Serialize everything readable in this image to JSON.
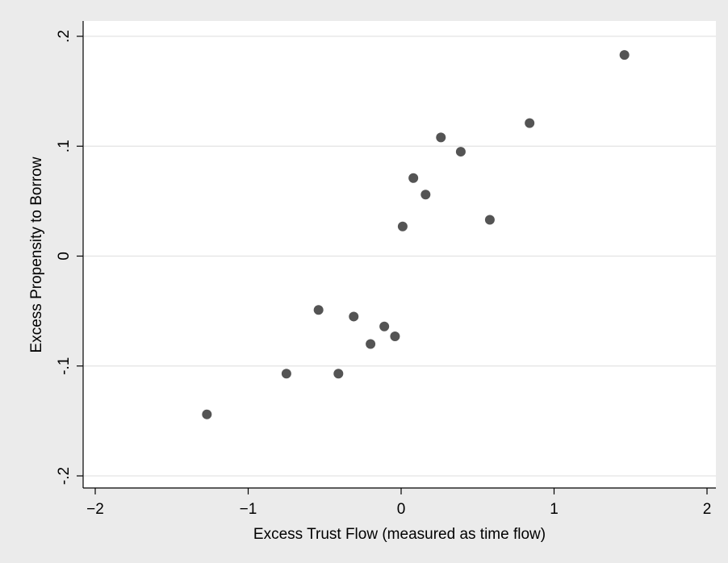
{
  "chart_data": {
    "type": "scatter",
    "title": "",
    "xlabel": "Excess Trust Flow (measured as time flow)",
    "ylabel": "Excess Propensity to Borrow",
    "xlim": [
      -2,
      2
    ],
    "ylim": [
      -0.2,
      0.2
    ],
    "x_ticks": [
      -2,
      -1,
      0,
      1,
      2
    ],
    "x_tick_labels": [
      "−2",
      "−1",
      "0",
      "1",
      "2"
    ],
    "y_ticks": [
      -0.2,
      -0.1,
      0,
      0.1,
      0.2
    ],
    "y_tick_labels": [
      "-.2",
      "-.1",
      "0",
      ".1",
      ".2"
    ],
    "grid": "horizontal",
    "marker_color": "#545454",
    "plot_background": "#ffffff",
    "page_background": "#ebebeb",
    "gridline_color": "#e3e3e3",
    "points": [
      {
        "x": -1.27,
        "y": -0.144
      },
      {
        "x": -0.75,
        "y": -0.107
      },
      {
        "x": -0.54,
        "y": -0.049
      },
      {
        "x": -0.41,
        "y": -0.107
      },
      {
        "x": -0.31,
        "y": -0.055
      },
      {
        "x": -0.2,
        "y": -0.08
      },
      {
        "x": -0.11,
        "y": -0.064
      },
      {
        "x": -0.04,
        "y": -0.073
      },
      {
        "x": 0.01,
        "y": 0.027
      },
      {
        "x": 0.08,
        "y": 0.071
      },
      {
        "x": 0.16,
        "y": 0.056
      },
      {
        "x": 0.26,
        "y": 0.108
      },
      {
        "x": 0.39,
        "y": 0.095
      },
      {
        "x": 0.58,
        "y": 0.033
      },
      {
        "x": 0.84,
        "y": 0.121
      },
      {
        "x": 1.46,
        "y": 0.183
      }
    ]
  }
}
